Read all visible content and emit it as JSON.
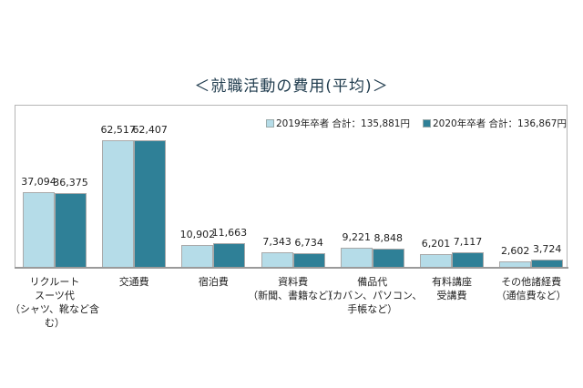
{
  "title": "＜就職活動の費用(平均)＞",
  "legend": [
    {
      "label": "2019年卒者 合計：135,881円",
      "color": "#b5dce8"
    },
    {
      "label": "2020年卒者 合計：136,867円",
      "color": "#2f8097"
    }
  ],
  "chart_data": {
    "type": "bar",
    "title": "＜就職活動の費用(平均)＞",
    "xlabel": "",
    "ylabel": "",
    "unit": "円",
    "grid": false,
    "legend_position": "top-right inside",
    "categories": [
      "リクルートスーツ代（シャツ、靴など含む）",
      "交通費",
      "宿泊費",
      "資料費（新聞、書籍など）",
      "備品代（カバン、パソコン、手帳など）",
      "有料講座受講費",
      "その他諸経費（通信費など）"
    ],
    "series": [
      {
        "name": "2019年卒者 合計：135,881円",
        "color": "#b5dce8",
        "values": [
          37094,
          62517,
          10902,
          7343,
          9221,
          6201,
          2602
        ],
        "labels": [
          "37,094",
          "62,517",
          "10,902",
          "7,343",
          "9,221",
          "6,201",
          "2,602"
        ]
      },
      {
        "name": "2020年卒者 合計：136,867円",
        "color": "#2f8097",
        "values": [
          36375,
          62407,
          11663,
          6734,
          8848,
          7117,
          3724
        ],
        "labels": [
          "36,375",
          "62,407",
          "11,663",
          "6,734",
          "8,848",
          "7,117",
          "3,724"
        ]
      }
    ],
    "totals": {
      "2019": 135881,
      "2020": 136867
    }
  },
  "category_lines": [
    [
      "リクルート",
      "スーツ代",
      "（シャツ、靴など含む）"
    ],
    [
      "交通費"
    ],
    [
      "宿泊費"
    ],
    [
      "資料費",
      "（新聞、書籍など）"
    ],
    [
      "備品代",
      "（カバン、パソコン、",
      "手帳など）"
    ],
    [
      "有料講座",
      "受講費"
    ],
    [
      "その他諸経費",
      "（通信費など）"
    ]
  ]
}
